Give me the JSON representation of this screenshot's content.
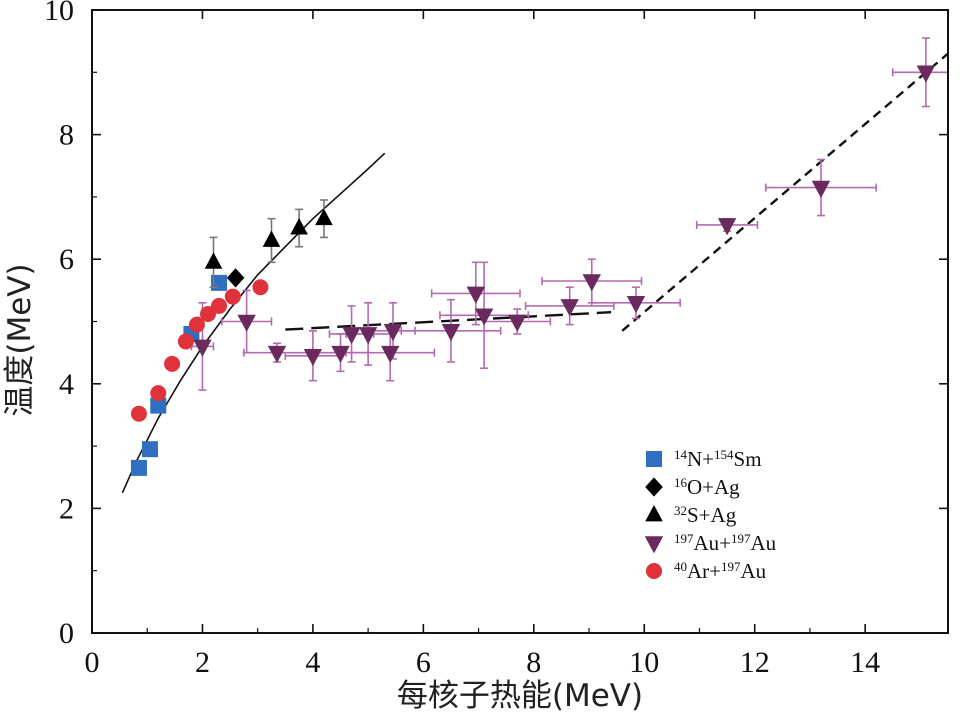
{
  "chart_data": {
    "type": "scatter",
    "title": "",
    "xlabel": "每核子热能(MeV)",
    "ylabel": "温度(MeV)",
    "xlim": [
      0,
      15.5
    ],
    "ylim": [
      0,
      10
    ],
    "xticks": [
      0,
      2,
      4,
      6,
      8,
      10,
      12,
      14
    ],
    "yticks": [
      0,
      2,
      4,
      6,
      8,
      10
    ],
    "xtick_labels": [
      "0",
      "2",
      "4",
      "6",
      "8",
      "10",
      "12",
      "14"
    ],
    "ytick_labels": [
      "0",
      "2",
      "4",
      "6",
      "8",
      "10"
    ],
    "legend_position": "lower-right",
    "series": [
      {
        "name": "14N+154Sm",
        "legend_parts": [
          [
            "14",
            "sup"
          ],
          [
            "N+",
            "t"
          ],
          [
            "154",
            "sup"
          ],
          [
            "Sm",
            "t"
          ]
        ],
        "marker": "square",
        "color": "#2f6fbf",
        "points": [
          [
            0.85,
            2.65
          ],
          [
            1.05,
            2.95
          ],
          [
            1.2,
            3.65
          ],
          [
            1.8,
            4.8
          ],
          [
            2.3,
            5.62
          ]
        ]
      },
      {
        "name": "16O+Ag",
        "legend_parts": [
          [
            "16",
            "sup"
          ],
          [
            "O+Ag",
            "t"
          ]
        ],
        "marker": "diamond",
        "color": "#000000",
        "points": [
          [
            2.6,
            5.7
          ]
        ]
      },
      {
        "name": "32S+Ag",
        "legend_parts": [
          [
            "32",
            "sup"
          ],
          [
            "S+Ag",
            "t"
          ]
        ],
        "marker": "triangle-up",
        "color": "#000000",
        "points": [
          [
            2.2,
            5.95
          ],
          [
            3.25,
            6.3
          ],
          [
            3.75,
            6.5
          ],
          [
            4.2,
            6.65
          ]
        ],
        "yerr": [
          0.4,
          0.35,
          0.3,
          0.3
        ]
      },
      {
        "name": "197Au+197Au",
        "legend_parts": [
          [
            "197",
            "sup"
          ],
          [
            "Au+",
            "t"
          ],
          [
            "197",
            "sup"
          ],
          [
            "Au",
            "t"
          ]
        ],
        "marker": "triangle-down",
        "color": "#6b2a5e",
        "errcolor": "#b26bb0",
        "points": [
          [
            2.0,
            4.6
          ],
          [
            2.8,
            5.0
          ],
          [
            3.35,
            4.5
          ],
          [
            4.0,
            4.45
          ],
          [
            4.5,
            4.5
          ],
          [
            4.7,
            4.8
          ],
          [
            5.0,
            4.8
          ],
          [
            5.4,
            4.5
          ],
          [
            5.45,
            4.85
          ],
          [
            6.5,
            4.85
          ],
          [
            6.95,
            5.45
          ],
          [
            7.1,
            5.1
          ],
          [
            7.7,
            5.0
          ],
          [
            8.65,
            5.25
          ],
          [
            9.05,
            5.65
          ],
          [
            9.85,
            5.3
          ],
          [
            11.5,
            6.55
          ],
          [
            13.2,
            7.15
          ],
          [
            15.1,
            9.0
          ]
        ],
        "xerr": [
          0.2,
          0.45,
          0.6,
          0.5,
          0.5,
          0.4,
          0.4,
          0.8,
          0.4,
          0.9,
          0.8,
          0.8,
          0.6,
          0.8,
          0.9,
          0.8,
          0.55,
          1.0,
          0.6
        ],
        "yerr": [
          0.7,
          0.5,
          0.15,
          0.4,
          0.3,
          0.45,
          0.5,
          0.45,
          0.45,
          0.5,
          0.5,
          0.85,
          0.2,
          0.3,
          0.35,
          0.25,
          0.1,
          0.45,
          0.55
        ]
      },
      {
        "name": "40Ar+197Au",
        "legend_parts": [
          [
            "40",
            "sup"
          ],
          [
            "Ar+",
            "t"
          ],
          [
            "197",
            "sup"
          ],
          [
            "Au",
            "t"
          ]
        ],
        "marker": "circle",
        "color": "#e0323a",
        "points": [
          [
            0.85,
            3.52
          ],
          [
            1.2,
            3.85
          ],
          [
            1.45,
            4.32
          ],
          [
            1.7,
            4.68
          ],
          [
            1.9,
            4.95
          ],
          [
            2.1,
            5.12
          ],
          [
            2.3,
            5.25
          ],
          [
            2.55,
            5.4
          ],
          [
            3.05,
            5.55
          ]
        ]
      }
    ],
    "fits": [
      {
        "name": "solid curve",
        "style": "solid",
        "color": "#111111",
        "points": [
          [
            0.55,
            2.25
          ],
          [
            0.8,
            2.75
          ],
          [
            1.2,
            3.45
          ],
          [
            1.6,
            4.05
          ],
          [
            2.0,
            4.6
          ],
          [
            2.5,
            5.2
          ],
          [
            3.0,
            5.75
          ],
          [
            3.5,
            6.2
          ],
          [
            4.0,
            6.65
          ],
          [
            4.5,
            7.05
          ],
          [
            5.0,
            7.45
          ],
          [
            5.3,
            7.7
          ]
        ]
      },
      {
        "name": "long-dash plateau",
        "style": "longdash",
        "color": "#111111",
        "points": [
          [
            3.5,
            4.87
          ],
          [
            9.4,
            5.15
          ]
        ]
      },
      {
        "name": "short-dash line",
        "style": "shortdash",
        "color": "#111111",
        "points": [
          [
            9.6,
            4.85
          ],
          [
            15.5,
            9.3
          ]
        ]
      }
    ]
  }
}
